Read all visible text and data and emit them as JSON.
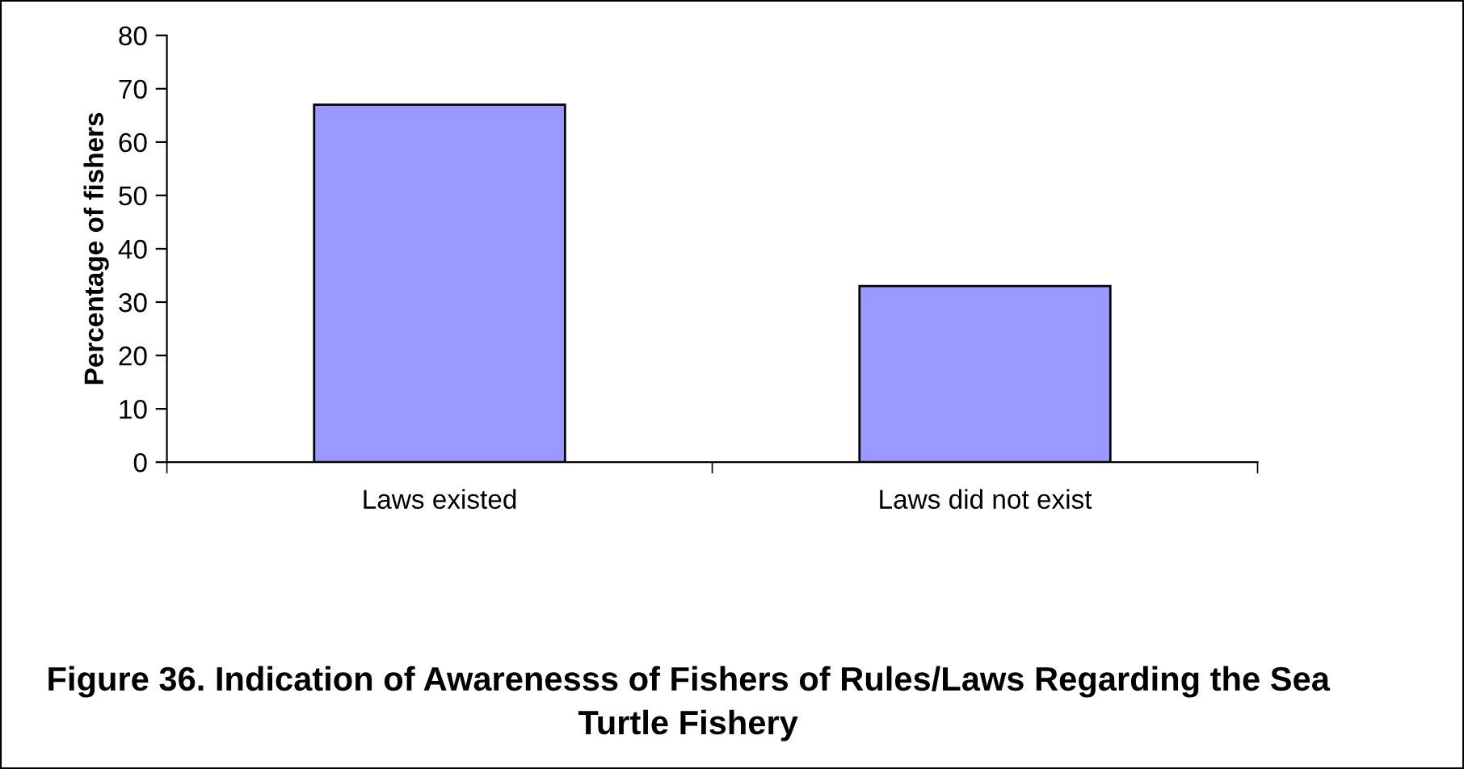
{
  "chart_data": {
    "type": "bar",
    "title": "Figure 36. Indication of Awarenesss of Fishers of Rules/Laws Regarding the Sea Turtle Fishery",
    "ylabel": "Percentage of fishers",
    "categories": [
      "Laws existed",
      "Laws did not exist"
    ],
    "values": [
      67,
      33
    ],
    "color": "#9999ff",
    "ylim": [
      0,
      80
    ],
    "yticks": [
      0,
      10,
      20,
      30,
      40,
      50,
      60,
      70,
      80
    ],
    "grid": false,
    "legend": false
  }
}
